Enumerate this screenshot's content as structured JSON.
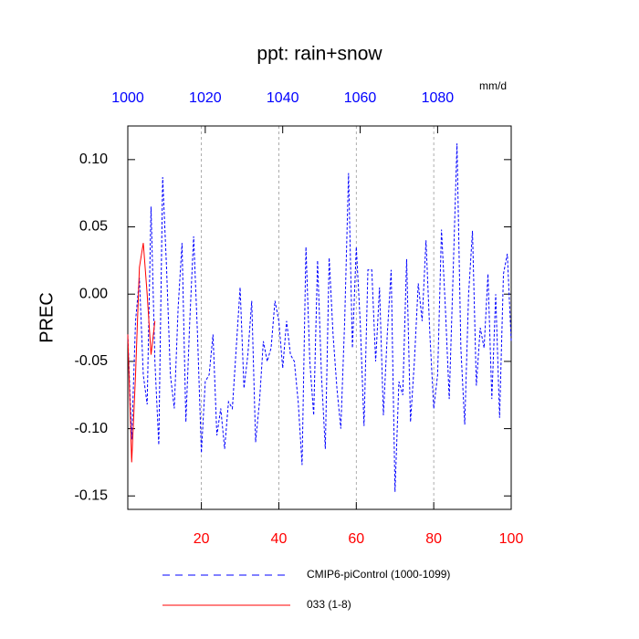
{
  "chart_data": {
    "type": "line",
    "title": "ppt: rain+snow",
    "subtitle": "mm/d",
    "ylabel": "PREC",
    "x": [
      1,
      2,
      3,
      4,
      5,
      6,
      7,
      8,
      9,
      10,
      11,
      12,
      13,
      14,
      15,
      16,
      17,
      18,
      19,
      20,
      21,
      22,
      23,
      24,
      25,
      26,
      27,
      28,
      29,
      30,
      31,
      32,
      33,
      34,
      35,
      36,
      37,
      38,
      39,
      40,
      41,
      42,
      43,
      44,
      45,
      46,
      47,
      48,
      49,
      50,
      51,
      52,
      53,
      54,
      55,
      56,
      57,
      58,
      59,
      60,
      61,
      62,
      63,
      64,
      65,
      66,
      67,
      68,
      69,
      70,
      71,
      72,
      73,
      74,
      75,
      76,
      77,
      78,
      79,
      80,
      81,
      82,
      83,
      84,
      85,
      86,
      87,
      88,
      89,
      90,
      91,
      92,
      93,
      94,
      95,
      96,
      97,
      98,
      99,
      100
    ],
    "series": [
      {
        "name": "CMIP6-piControl (1000-1099)",
        "color": "#0000ff",
        "line_style": "dashed",
        "values": [
          -0.03,
          -0.108,
          -0.02,
          0.012,
          -0.06,
          -0.082,
          0.065,
          -0.05,
          -0.112,
          0.087,
          0.02,
          -0.06,
          -0.085,
          -0.01,
          0.038,
          -0.095,
          -0.02,
          0.043,
          -0.03,
          -0.118,
          -0.065,
          -0.06,
          -0.03,
          -0.105,
          -0.085,
          -0.115,
          -0.08,
          -0.085,
          -0.04,
          0.005,
          -0.07,
          -0.045,
          -0.005,
          -0.11,
          -0.08,
          -0.035,
          -0.05,
          -0.04,
          -0.005,
          -0.02,
          -0.055,
          -0.02,
          -0.045,
          -0.05,
          -0.08,
          -0.127,
          0.035,
          -0.05,
          -0.09,
          0.025,
          -0.06,
          -0.115,
          0.027,
          -0.03,
          -0.07,
          -0.1,
          -0.02,
          0.09,
          -0.04,
          0.035,
          -0.02,
          -0.098,
          0.018,
          0.018,
          -0.05,
          0.005,
          -0.09,
          -0.03,
          0.018,
          -0.147,
          -0.065,
          -0.075,
          0.026,
          -0.095,
          -0.05,
          0.008,
          -0.02,
          0.04,
          -0.03,
          -0.085,
          -0.06,
          0.048,
          -0.01,
          -0.078,
          0.015,
          0.112,
          -0.04,
          -0.097,
          0.0,
          0.047,
          -0.068,
          -0.025,
          -0.04,
          0.015,
          -0.078,
          0.0,
          -0.092,
          0.015,
          0.03,
          -0.035
        ]
      },
      {
        "name": "033 (1-8)",
        "color": "#ff0000",
        "line_style": "solid",
        "x": [
          1,
          2,
          3,
          4,
          5,
          6,
          7,
          8
        ],
        "values": [
          -0.03,
          -0.125,
          -0.06,
          0.02,
          0.038,
          0.0,
          -0.045,
          -0.02
        ]
      }
    ],
    "xlim": [
      1,
      100
    ],
    "xticks": [
      20,
      40,
      60,
      80,
      100
    ],
    "xtick_color": "#ff0000",
    "x2lim": [
      1000,
      1099
    ],
    "x2ticks": [
      1000,
      1020,
      1040,
      1060,
      1080
    ],
    "x2tick_color": "#0000ff",
    "ylim": [
      -0.16,
      0.125
    ],
    "yticks": [
      {
        "value": 0.1,
        "label": "0.10"
      },
      0.05,
      {
        "value": 0,
        "label": "0.00"
      },
      -0.05,
      {
        "value": -0.1,
        "label": "-0.10"
      },
      -0.15
    ],
    "xgrid": true
  }
}
